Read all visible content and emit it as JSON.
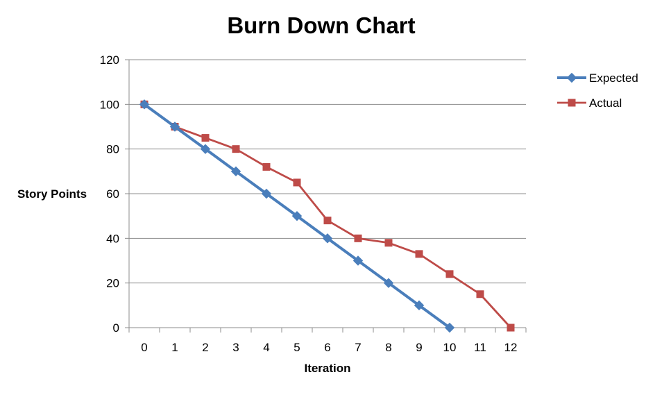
{
  "chart_data": {
    "type": "line",
    "title": "Burn Down Chart",
    "xlabel": "Iteration",
    "ylabel": "Story Points",
    "categories": [
      "0",
      "1",
      "2",
      "3",
      "4",
      "5",
      "6",
      "7",
      "8",
      "9",
      "10",
      "11",
      "12"
    ],
    "ylim": [
      0,
      120
    ],
    "yticks": [
      "0",
      "20",
      "40",
      "60",
      "80",
      "100",
      "120"
    ],
    "grid": true,
    "legend_position": "right",
    "series": [
      {
        "name": "Expected",
        "color": "#4a7ebb",
        "marker": "diamond",
        "values": [
          100,
          90,
          80,
          70,
          60,
          50,
          40,
          30,
          20,
          10,
          0,
          null,
          null
        ]
      },
      {
        "name": "Actual",
        "color": "#be4b48",
        "marker": "square",
        "values": [
          100,
          90,
          85,
          80,
          72,
          65,
          48,
          40,
          38,
          33,
          24,
          15,
          0
        ]
      }
    ]
  }
}
